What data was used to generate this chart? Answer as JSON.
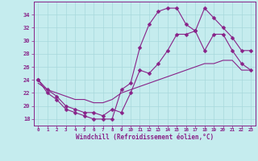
{
  "xlabel": "Windchill (Refroidissement éolien,°C)",
  "bg_color": "#c5ecee",
  "grid_color": "#a8d8dc",
  "line_color": "#882288",
  "line1_x": [
    0,
    1,
    2,
    3,
    4,
    5,
    6,
    7,
    8,
    9,
    10,
    11,
    12,
    13,
    14,
    15,
    16,
    17,
    18,
    19,
    20,
    21,
    22,
    23
  ],
  "line1_y": [
    24,
    22,
    21,
    19.5,
    19,
    18.5,
    18,
    18,
    18,
    22.5,
    23.5,
    29,
    32.5,
    34.5,
    35,
    35,
    32.5,
    31.5,
    35,
    33.5,
    32,
    30.5,
    28.5,
    28.5
  ],
  "line2_x": [
    0,
    1,
    2,
    3,
    4,
    5,
    6,
    7,
    8,
    9,
    10,
    11,
    12,
    13,
    14,
    15,
    16,
    17,
    18,
    19,
    20,
    21,
    22,
    23
  ],
  "line2_y": [
    24,
    22.5,
    21.5,
    20,
    19.5,
    19,
    19,
    18.5,
    19.5,
    19,
    22,
    25.5,
    25,
    26.5,
    28.5,
    31,
    31,
    31.5,
    28.5,
    31,
    31,
    28.5,
    26.5,
    25.5
  ],
  "line3_x": [
    0,
    1,
    2,
    3,
    4,
    5,
    6,
    7,
    8,
    9,
    10,
    11,
    12,
    13,
    14,
    15,
    16,
    17,
    18,
    19,
    20,
    21,
    22,
    23
  ],
  "line3_y": [
    23.5,
    22.5,
    22,
    21.5,
    21,
    21,
    20.5,
    20.5,
    21,
    22,
    22.5,
    23,
    23.5,
    24,
    24.5,
    25,
    25.5,
    26,
    26.5,
    26.5,
    27,
    27,
    25.5,
    25.5
  ],
  "yticks": [
    18,
    20,
    22,
    24,
    26,
    28,
    30,
    32,
    34
  ],
  "xticks": [
    0,
    1,
    2,
    3,
    4,
    5,
    6,
    7,
    8,
    9,
    10,
    11,
    12,
    13,
    14,
    15,
    16,
    17,
    18,
    19,
    20,
    21,
    22,
    23
  ],
  "x_min": -0.5,
  "x_max": 23.5,
  "y_min": 17.0,
  "y_max": 36.0,
  "marker_size": 2.5,
  "line_width": 0.8
}
